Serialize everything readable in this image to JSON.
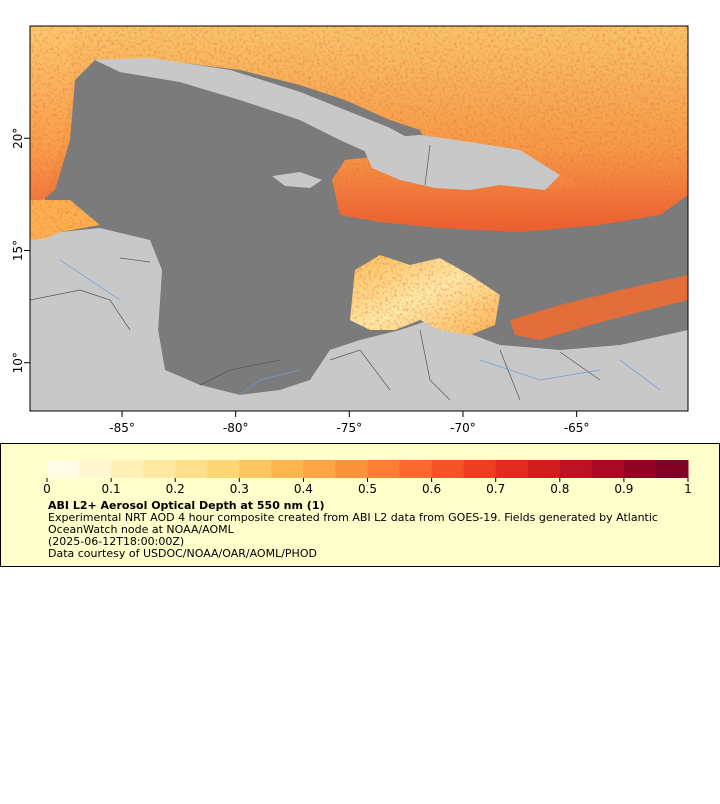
{
  "map": {
    "xlim": [
      -89.05,
      -60.1
    ],
    "ylim": [
      7.85,
      25
    ],
    "xticks": [
      {
        "value": -85,
        "label": "-85°"
      },
      {
        "value": -80,
        "label": "-80°"
      },
      {
        "value": -75,
        "label": "-75°"
      },
      {
        "value": -70,
        "label": "-70°"
      },
      {
        "value": -65,
        "label": "-65°"
      }
    ],
    "yticks": [
      {
        "value": 10,
        "label": "10°"
      },
      {
        "value": 15,
        "label": "15°"
      },
      {
        "value": 20,
        "label": "20°"
      }
    ]
  },
  "colorbar": {
    "clim": [
      0,
      1
    ],
    "ticks": [
      0,
      0.1,
      0.2,
      0.3,
      0.4,
      0.5,
      0.6,
      0.7,
      0.8,
      0.9,
      1
    ],
    "colors": [
      "#fffde6",
      "#fff7cf",
      "#fff0b8",
      "#ffe9a1",
      "#fee08b",
      "#fed676",
      "#fdc661",
      "#fdb54f",
      "#fda444",
      "#fc923c",
      "#fc7f35",
      "#fa6a2e",
      "#f55428",
      "#ec3f22",
      "#e02c1e",
      "#d01e1f",
      "#bd1223",
      "#a80a25",
      "#920425",
      "#800026"
    ]
  },
  "legend": {
    "title": "ABI L2+ Aerosol Optical Depth at 550 nm (1)",
    "description": "Experimental NRT AOD 4 hour composite created from ABI L2 data from GOES-19. Fields generated by Atlantic OceanWatch node at NOAA/AOML",
    "time": "(2025-06-12T18:00:00Z)",
    "credit": "Data courtesy of USDOC/NOAA/OAR/AOML/PHOD"
  }
}
